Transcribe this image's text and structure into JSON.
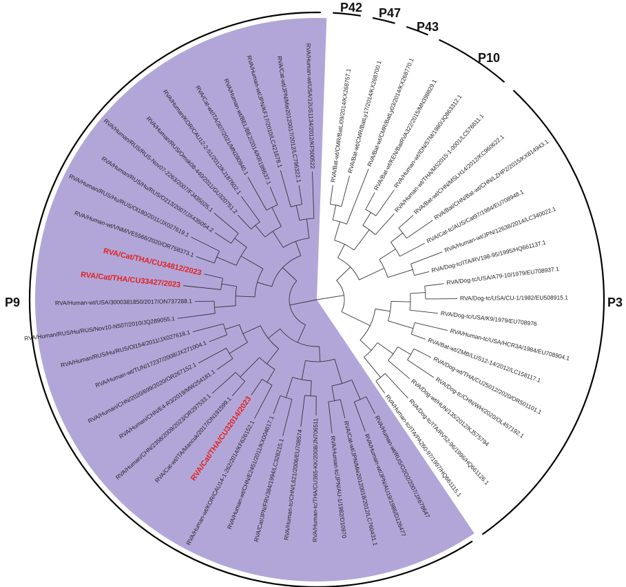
{
  "clade_labels": [
    "P42",
    "P47",
    "P43",
    "P10",
    "P3"
  ],
  "outer_leaves": [
    "RVA/Bat-wt/CMR/BatLi09/2014/KX268757.1",
    "RVA/Bat-wt/CMR/BatLy17/2014/KX268700.1",
    "RVA/Bat-wt/CMR/BatLy03/2014/KX268770.1",
    "RVA/Bat-wt/KEN/BatRVA322/2015/MN398829.1",
    "RVA/Human-wt/IDN/57M/1980/JQ863312.1",
    "RVA/Human-wt/THA/MS2015-1-0001/LC576611.1",
    "RVA/Bat-wt/CHN/MSLH14/2012/KC960622.1",
    "RVA/Bat/CHN/Bat-wt/CHN/LZHP2/2015/KX814943.1",
    "RVA/Cat-tc/AUS/Cat97/1984/EU708948.1",
    "RVA/Human-wt/JPN/12638/2014/LC340022.1",
    "RVA/Dog-tc/ITA/RV198-95/1995/HQ661137.1",
    "RVA/Dog-tc/USA/A79-10/1979/EU708937.1",
    "RVA/Dog-tc/USA/CU-1/1982/EU508915.1",
    "RVA/Dog-tc/USA/K9/1979/EU708976",
    "RVA/Human-tc/USA/HCR3A/1984/EU708904.1",
    "RVA/Bat-wt/ZMB/LUS12-14/2012/LC158117.1",
    "RVA/Dog-wt/THA/CU25012/2020/OR501101.1",
    "RVA/Dog-tc/CHN/WH/2020/OL457192.1",
    "RVA/Dog-wt/HUN/135/2012/KJ575794",
    "RVA/Dog-tc/ITA/RV52-96/1996/HQ661126.1",
    "RVA/Human-tc/ITA/PA260-97/1997/HQ661115.1"
  ],
  "p9": {
    "label": "P9",
    "leaves": [
      "RVA/Human-wt/RUS/O2O2/2007/JX678647",
      "RVA/Human-wt/JPN/AU19/1986/D126477",
      "RVA/Cat-wt/JPN/Mie20120018/2012/LC760431.1",
      "RVA/Human-tc/JPN/AU-1/1982/D10970",
      "RVA/Human-tc/THA/CU365-KK/2008/JN706511",
      "RVA/Human-tc/CHN/L621/2006/EU708574",
      "RVA/Cat/JPN/FRV384/1994/LC328215.1",
      "RVA/Human-wt/CHN/E2451/2011/KX004617.1",
      "RVA/Human-wt/KOR/CAU14-1-262/2014/KF626152.1",
      {
        "text": "RVA/Cat/THA/CU32014/2023",
        "color": "#e3211c"
      },
      "RVA/Cat-wt/ITA/Mancuk/2017/ON191599.1",
      "RVA/Human/CHN/2358/2009/2023/OR297533.1",
      "RVA/Human/CHN/E4-R3/2019/MW254181.1",
      "RVA/Human/CHN/2020/699/2020/OR267152.1",
      "RVA/Human-wt/TUN/17237/2008/JX271004.1",
      "RVA/Human/RUS/Hu/RUS/Ol154/2011/JX027618.1",
      "RVA/Human/RUS/Hu/RUS/Nov10-N507/2010/JQ289055.1",
      "RVA/Human-wt/USA/3000381850/2017/ON737288.1",
      {
        "text": "RVA/Cat/THA/CU33427/2023",
        "color": "#e3211c"
      },
      {
        "text": "RVA/Cat/THA/CU34812/2023",
        "color": "#e3211c"
      },
      "RVA/Human-wt/VNM/VE5566/2020/OR758373.1",
      "RVA/Human/RUS/Hu/RUS/Ol180/2011/JX027619.1",
      "RVA/Human/RUS/Hu/RUS/O213/2007/JX435054.2",
      "RVA/Human/RUS/RUS-Nov07-2263/2007/FJ435025.1",
      "RVA/Human/RUS/Omsk08-440/2011/GU320751.2",
      "RVA/Human/KOR/CAU12-2-51/2012/KJ187602.1",
      "RVA/Cat-wt/ITA/307/2021/MN280940.1",
      "RVA/Human-wt/BEL/BE2/2014/KR198637.1",
      "RVA/Human-wt/JPN/KF17/2010/LC421678.1",
      "RVA/Cat-wt/JPN/Mie20120017/2012/LC796322.1",
      "RVA/Human-wt/USA/12US1134/2012/KF500522"
    ],
    "color": "#b2a6d9"
  }
}
